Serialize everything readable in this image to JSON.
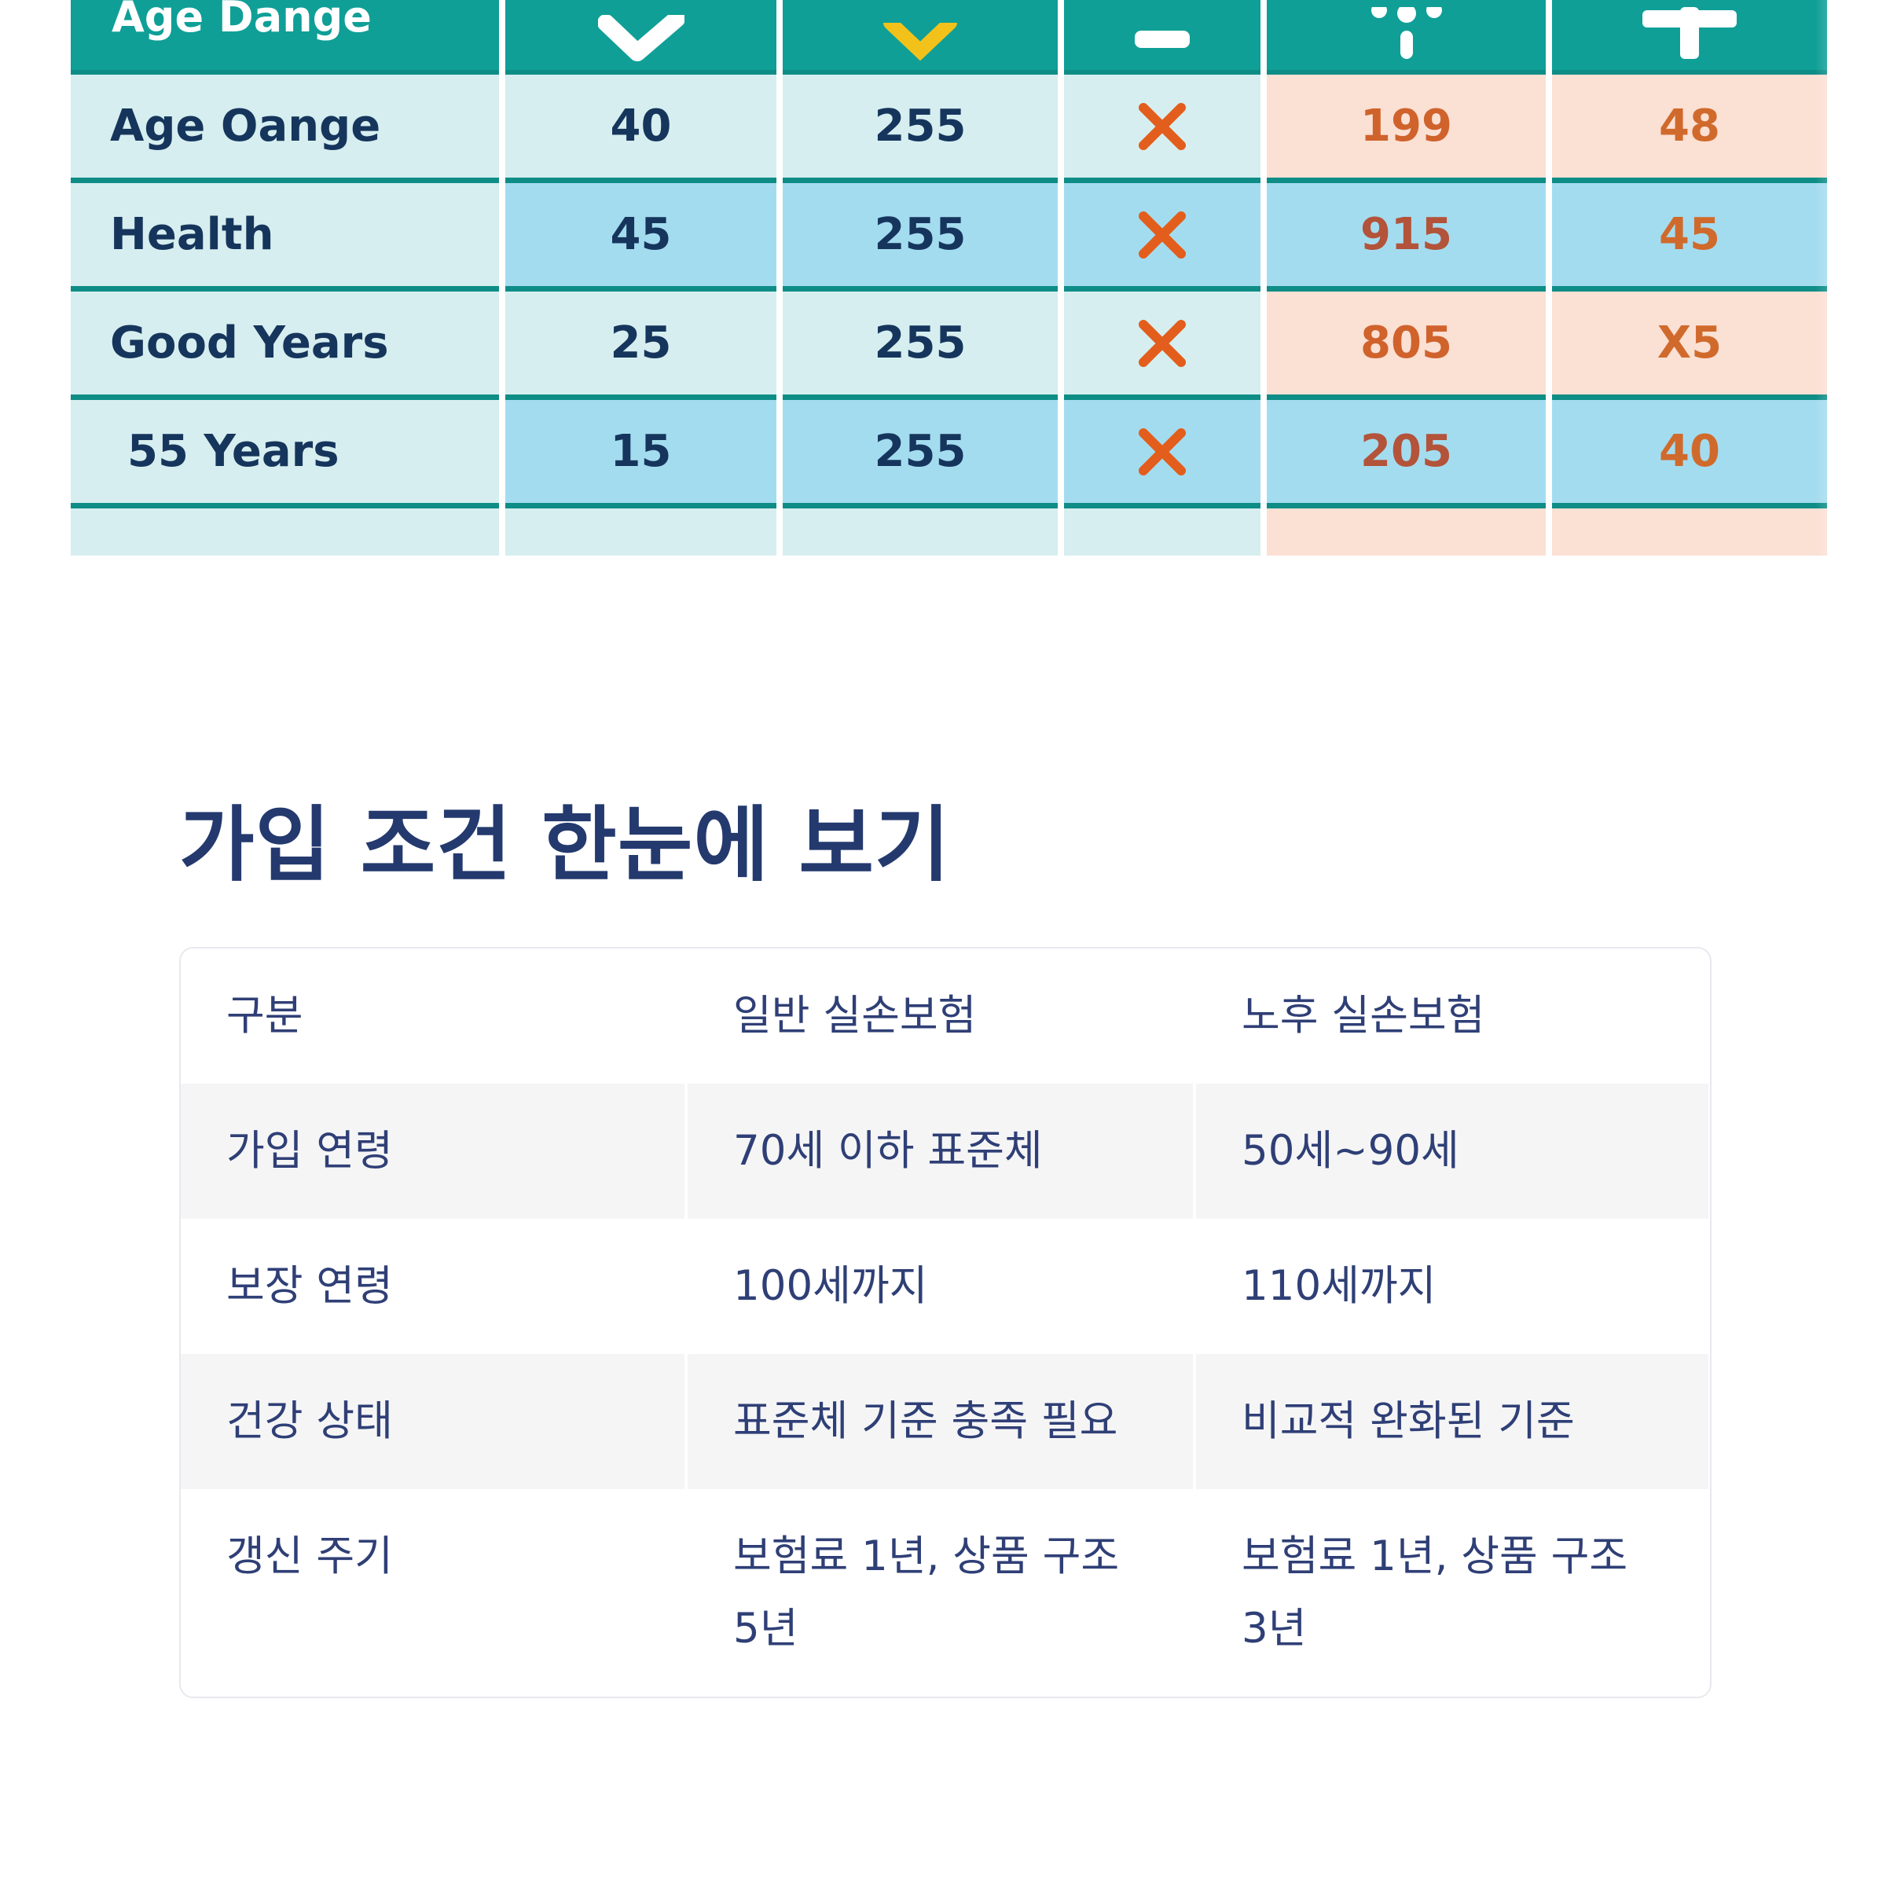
{
  "infographic": {
    "header_first": "Age Dange",
    "header_icons": [
      "check-icon",
      "x-icon",
      "box-icon",
      "flower-icon",
      "plus-icon"
    ],
    "header_colors": {
      "teal": "#0f9f97",
      "yellow": "#f2c21b",
      "white": "#ffffff"
    },
    "rows": [
      {
        "label": "Age Oange",
        "c1": "40",
        "c2": "255",
        "c3": "x",
        "c4": "199",
        "c5": "48"
      },
      {
        "label": "Health",
        "c1": "45",
        "c2": "255",
        "c3": "x",
        "c4": "915",
        "c5": "45"
      },
      {
        "label": "Good  Years",
        "c1": "25",
        "c2": "255",
        "c3": "x",
        "c4": "805",
        "c5": "X5"
      },
      {
        "label": "55 Years",
        "c1": "15",
        "c2": "255",
        "c3": "x",
        "c4": "205",
        "c5": "40"
      }
    ],
    "x_color": "#e35d1c"
  },
  "section": {
    "title": "가입 조건 한눈에 보기"
  },
  "comparison": {
    "headers": [
      "구분",
      "일반 실손보험",
      "노후 실손보험"
    ],
    "rows": [
      [
        "가입 연령",
        "70세 이하 표준체",
        "50세~90세"
      ],
      [
        "보장 연령",
        "100세까지",
        "110세까지"
      ],
      [
        "건강 상태",
        "표준체 기준 충족 필요",
        "비교적 완화된 기준"
      ],
      [
        "갱신 주기",
        "보험료 1년, 상품 구조 5년",
        "보험료 1년, 상품 구조 3년"
      ]
    ]
  }
}
